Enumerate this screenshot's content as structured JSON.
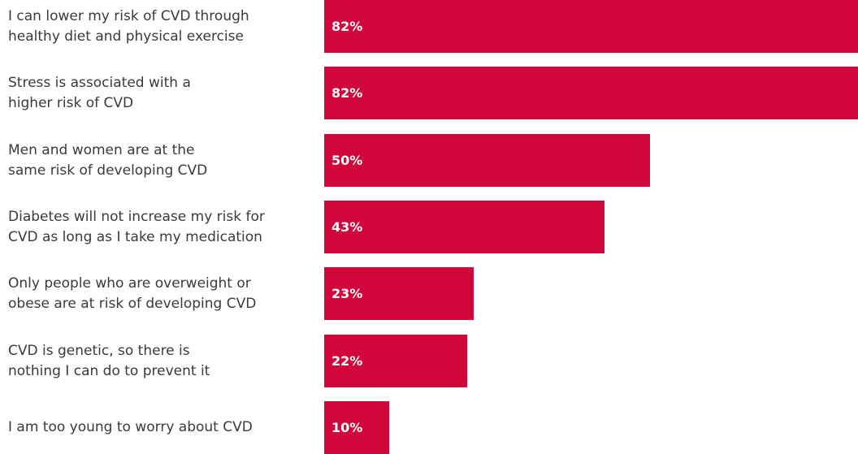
{
  "chart_data": {
    "type": "bar",
    "orientation": "horizontal",
    "bar_color": "#D1063B",
    "label_color": "#3A3A3A",
    "value_label_color": "#FFFFFF",
    "xlim": [
      0,
      82
    ],
    "categories": [
      "I can lower my risk of CVD through\nhealthy diet and physical exercise",
      "Stress is associated with a\nhigher risk of CVD",
      "Men and women are at the\nsame risk of developing CVD",
      "Diabetes will not increase my risk for\nCVD as long as I take my medication",
      "Only people who are overweight or\nobese are at risk of developing CVD",
      "CVD is genetic, so there is\nnothing I can do to prevent it",
      "I am too young to worry about CVD"
    ],
    "values": [
      82,
      82,
      50,
      43,
      23,
      22,
      10
    ],
    "value_labels": [
      "82%",
      "82%",
      "50%",
      "43%",
      "23%",
      "22%",
      "10%"
    ]
  }
}
